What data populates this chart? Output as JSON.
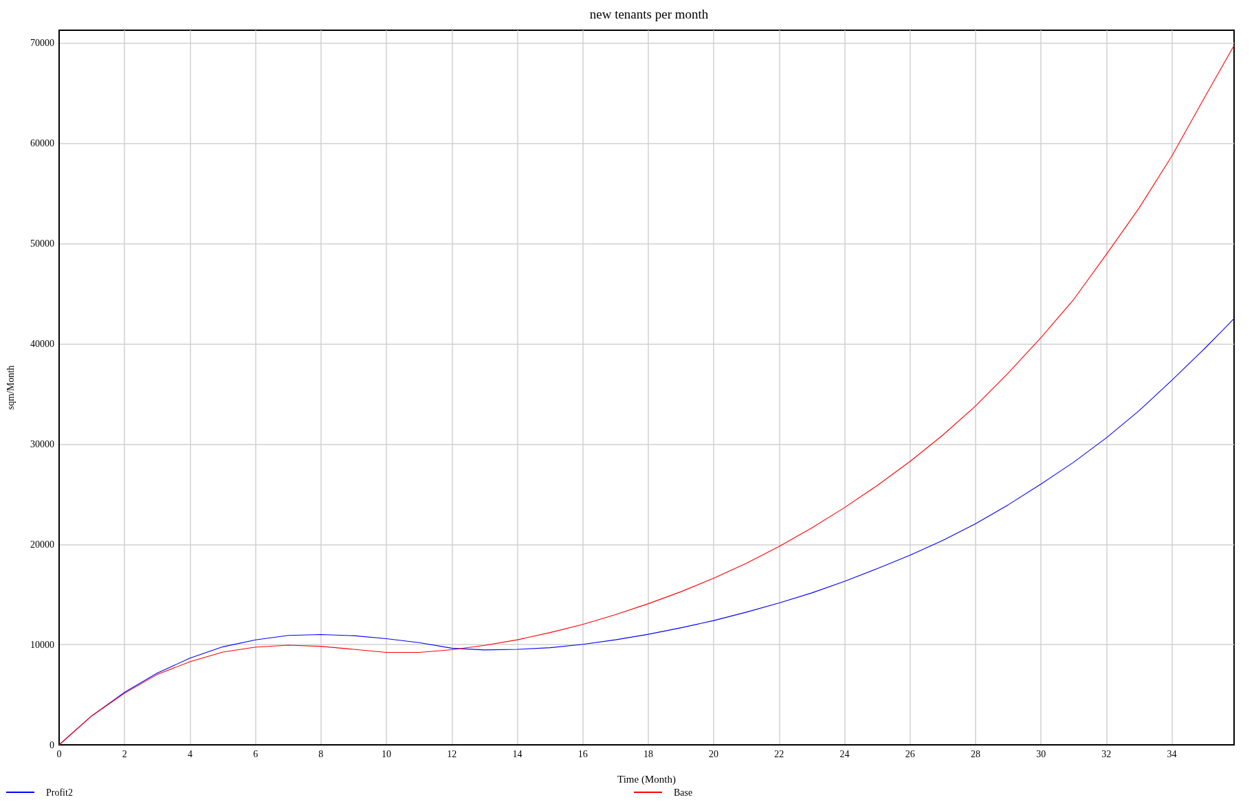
{
  "chart_data": {
    "type": "line",
    "title": "new tenants per month",
    "xlabel": "Time (Month)",
    "ylabel": "sqm/Month",
    "x": [
      0,
      1,
      2,
      3,
      4,
      5,
      6,
      7,
      8,
      9,
      10,
      11,
      12,
      13,
      14,
      15,
      16,
      17,
      18,
      19,
      20,
      21,
      22,
      23,
      24,
      25,
      26,
      27,
      28,
      29,
      30,
      31,
      32,
      33,
      34,
      35,
      35.9
    ],
    "series": [
      {
        "name": "Profit2",
        "color": "#0000ff",
        "values": [
          0,
          2900,
          5240,
          7160,
          8660,
          9780,
          10470,
          10920,
          11000,
          10890,
          10590,
          10200,
          9640,
          9470,
          9530,
          9690,
          10030,
          10480,
          11030,
          11680,
          12400,
          13240,
          14160,
          15160,
          16320,
          17580,
          18920,
          20400,
          22060,
          23950,
          26020,
          28200,
          30640,
          33340,
          36380,
          39540,
          42530
        ]
      },
      {
        "name": "Base",
        "color": "#ff0000",
        "values": [
          0,
          2900,
          5150,
          7020,
          8300,
          9250,
          9750,
          9940,
          9830,
          9530,
          9220,
          9220,
          9500,
          9920,
          10480,
          11200,
          12010,
          12990,
          14080,
          15280,
          16620,
          18120,
          19800,
          21650,
          23680,
          25880,
          28280,
          30900,
          33810,
          37100,
          40630,
          44440,
          48940,
          53570,
          58750,
          64600,
          69780
        ]
      }
    ],
    "xlim": [
      0,
      35.9
    ],
    "xticks": [
      0,
      2,
      4,
      6,
      8,
      10,
      12,
      14,
      16,
      18,
      20,
      22,
      24,
      26,
      28,
      30,
      32,
      34
    ],
    "ylim": [
      0,
      71300
    ],
    "yticks": [
      0,
      10000,
      20000,
      30000,
      40000,
      50000,
      60000,
      70000
    ],
    "grid": true,
    "legend": "bottom",
    "marker": "none",
    "line_style": "solid"
  }
}
